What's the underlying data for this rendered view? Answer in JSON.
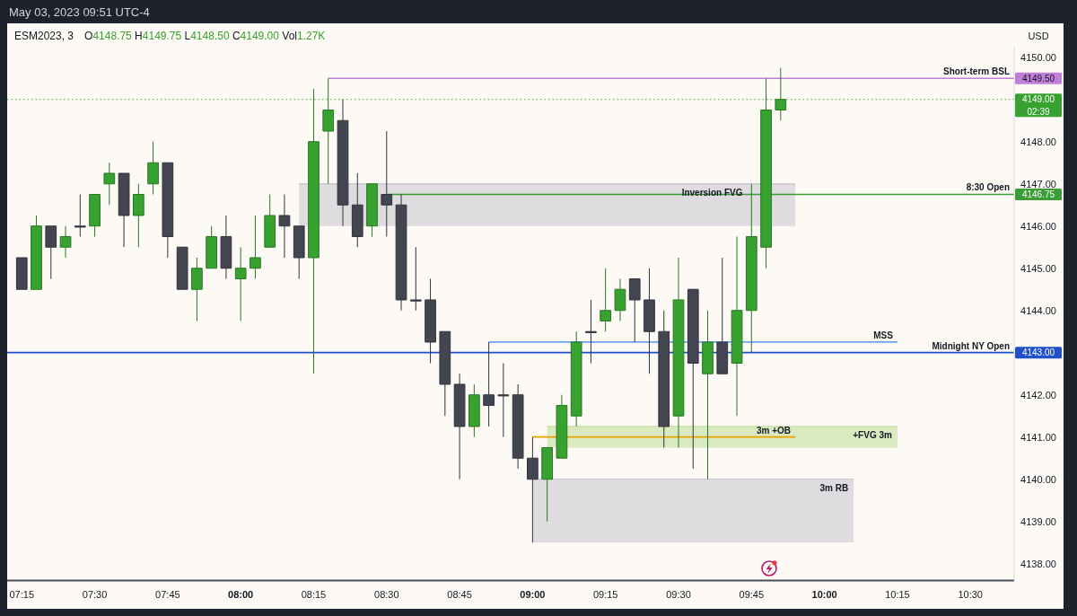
{
  "chart_data": {
    "type": "candlestick",
    "title": "ESM2023, 3",
    "subtitle": "O4148.75 H4149.75 L4148.50 C4149.00 Vol1.27K",
    "ylabel": "USD",
    "annotations": [
      "May 03, 2023 09:51 UTC-4",
      "02:39"
    ],
    "x": [
      7.25,
      7.3,
      7.35,
      7.4,
      7.45,
      7.5,
      7.55,
      7.6,
      7.65,
      7.7,
      7.75,
      7.8,
      7.85,
      7.9,
      7.95,
      8,
      8.05,
      8.1,
      8.15,
      8.2,
      8.25,
      8.3,
      8.35,
      8.4,
      8.45,
      8.5,
      8.55,
      8.6,
      8.65,
      8.7,
      8.75,
      8.8,
      8.85,
      8.9,
      8.95,
      9,
      9.05,
      9.1,
      9.15,
      9.2,
      9.25,
      9.3,
      9.35,
      9.4,
      9.45,
      9.5,
      9.55,
      9.6,
      9.65,
      9.7,
      9.75,
      9.8,
      9.85
    ],
    "ohlc": [
      [
        4145.25,
        4145.25,
        4144.5,
        4144.5
      ],
      [
        4144.5,
        4146.25,
        4144.5,
        4146
      ],
      [
        4146,
        4146,
        4144.75,
        4145.5
      ],
      [
        4145.5,
        4146,
        4145.25,
        4145.75
      ],
      [
        4146,
        4146.75,
        4145.75,
        4146
      ],
      [
        4146,
        4146.75,
        4145.75,
        4146.75
      ],
      [
        4147,
        4147.5,
        4146.5,
        4147.25
      ],
      [
        4147.25,
        4147.25,
        4145.5,
        4146.25
      ],
      [
        4146.25,
        4147,
        4145.5,
        4146.75
      ],
      [
        4147,
        4148,
        4146.75,
        4147.5
      ],
      [
        4147.5,
        4147.5,
        4145.25,
        4145.75
      ],
      [
        4145.5,
        4145.5,
        4144.5,
        4144.5
      ],
      [
        4144.5,
        4145.25,
        4143.75,
        4145
      ],
      [
        4145,
        4146,
        4145,
        4145.75
      ],
      [
        4145.75,
        4146.25,
        4144.75,
        4145
      ],
      [
        4144.75,
        4145.5,
        4143.75,
        4145
      ],
      [
        4145,
        4146.25,
        4144.75,
        4145.25
      ],
      [
        4145.5,
        4146.75,
        4145.5,
        4146.25
      ],
      [
        4146.25,
        4146.75,
        4145.25,
        4146
      ],
      [
        4146,
        4146,
        4144.75,
        4145.25
      ],
      [
        4145.25,
        4149.25,
        4142.5,
        4148
      ],
      [
        4148.25,
        4149.5,
        4147,
        4148.75
      ],
      [
        4148.5,
        4149,
        4146,
        4146.5
      ],
      [
        4146.5,
        4147.25,
        4145.5,
        4145.75
      ],
      [
        4146,
        4147,
        4145.75,
        4147
      ],
      [
        4146.75,
        4148.25,
        4145.75,
        4146.5
      ],
      [
        4146.5,
        4146.75,
        4144,
        4144.25
      ],
      [
        4144.25,
        4145.5,
        4144,
        4144.25
      ],
      [
        4144.25,
        4144.75,
        4142.75,
        4143.25
      ],
      [
        4143.5,
        4143.5,
        4141.5,
        4142.25
      ],
      [
        4142.25,
        4142.5,
        4140,
        4141.25
      ],
      [
        4141.25,
        4142.25,
        4141,
        4142
      ],
      [
        4142,
        4143.25,
        4141.25,
        4141.75
      ],
      [
        4142,
        4142.75,
        4141,
        4142
      ],
      [
        4142,
        4142.25,
        4140.25,
        4140.5
      ],
      [
        4140.5,
        4141,
        4138.5,
        4140
      ],
      [
        4140,
        4140.75,
        4139,
        4140.75
      ],
      [
        4140.5,
        4142,
        4140.5,
        4141.75
      ],
      [
        4141.5,
        4143.5,
        4141.25,
        4143.25
      ],
      [
        4143.5,
        4144.25,
        4142.75,
        4143.5
      ],
      [
        4143.75,
        4145,
        4143.5,
        4144
      ],
      [
        4144,
        4144.75,
        4143.75,
        4144.5
      ],
      [
        4144.75,
        4144.75,
        4143.25,
        4144.25
      ],
      [
        4144.25,
        4145,
        4142.5,
        4143.5
      ],
      [
        4143.5,
        4144,
        4140.75,
        4141.25
      ],
      [
        4141.5,
        4145.25,
        4140.75,
        4144.25
      ],
      [
        4144.5,
        4144.5,
        4140.25,
        4142.75
      ],
      [
        4142.5,
        4144,
        4140,
        4143.25
      ],
      [
        4143.25,
        4145.25,
        4142.5,
        4142.5
      ],
      [
        4142.75,
        4145.75,
        4141.5,
        4144
      ],
      [
        4144,
        4147,
        4143,
        4145.75
      ],
      [
        4145.5,
        4149.5,
        4145,
        4148.75
      ],
      [
        4148.75,
        4149.75,
        4148.5,
        4149
      ]
    ],
    "colors": [
      "#434651",
      "#37a22f",
      "#434651",
      "#37a22f",
      "#434651",
      "#37a22f",
      "#37a22f",
      "#434651",
      "#37a22f",
      "#37a22f",
      "#434651",
      "#434651",
      "#37a22f",
      "#37a22f",
      "#434651",
      "#37a22f",
      "#37a22f",
      "#37a22f",
      "#434651",
      "#434651",
      "#37a22f",
      "#37a22f",
      "#434651",
      "#434651",
      "#37a22f",
      "#434651",
      "#434651",
      "#434651",
      "#434651",
      "#434651",
      "#434651",
      "#37a22f",
      "#434651",
      "#434651",
      "#434651",
      "#434651",
      "#37a22f",
      "#37a22f",
      "#37a22f",
      "#434651",
      "#37a22f",
      "#37a22f",
      "#434651",
      "#434651",
      "#434651",
      "#37a22f",
      "#434651",
      "#37a22f",
      "#434651",
      "#37a22f",
      "#37a22f",
      "#37a22f",
      "#37a22f"
    ],
    "series": [
      {
        "type": "line",
        "name": "Inversion FVG",
        "x": [
          8.2,
          9.9
        ],
        "values": [
          4147,
          4147
        ],
        "lower": [
          4146,
          4146
        ],
        "upper": [
          4147,
          4147
        ],
        "color": "#c9c8cf"
      },
      {
        "type": "line",
        "name": "+FVG 3m",
        "x": [
          9.05,
          10.25
        ],
        "values": [
          4141.25,
          4141.25
        ],
        "lower": [
          4140.75,
          4140.75
        ],
        "upper": [
          4141.25,
          4141.25
        ],
        "color": "#c3df9c"
      },
      {
        "type": "line",
        "name": "3m RB",
        "x": [
          9,
          10.1
        ],
        "values": [
          4140,
          4140
        ],
        "lower": [
          4138.5,
          4138.5
        ],
        "upper": [
          4140,
          4140
        ],
        "color": "#c9c8cf"
      },
      {
        "type": "line",
        "name": "Short-term BSL",
        "x": [
          8.3,
          10.65
        ],
        "values": [
          4149.5,
          4149.5
        ],
        "color": "#c27fd9"
      },
      {
        "type": "line",
        "name": "8:30 Open",
        "x": [
          8.5,
          10.65
        ],
        "values": [
          4146.75,
          4146.75
        ],
        "color": "#3a9d35"
      },
      {
        "type": "line",
        "name": "MSS",
        "x": [
          8.85,
          10.25
        ],
        "values": [
          4143.25,
          4143.25
        ],
        "color": "#6aa5f2"
      },
      {
        "type": "line",
        "name": "Midnight NY Open",
        "x": [
          7.2,
          10.65
        ],
        "values": [
          4143,
          4143
        ],
        "color": "#1f4fcc"
      },
      {
        "type": "line",
        "name": "3m +OB",
        "x": [
          9,
          9.9
        ],
        "values": [
          4141,
          4141
        ],
        "color": "#e9a100"
      }
    ],
    "ref_lines": [
      {
        "axis": "y",
        "value": 4149,
        "color": "#37a22f",
        "line_style": "dotted"
      }
    ],
    "xlim": [
      7.2,
      10.65
    ],
    "ylim": [
      4137.6,
      4150.25
    ],
    "xticks": [
      {
        "value": 7.25,
        "label": "07:15"
      },
      {
        "value": 7.5,
        "label": "07:30"
      },
      {
        "value": 7.75,
        "label": "07:45"
      },
      {
        "value": 8,
        "label": "08:00"
      },
      {
        "value": 8.25,
        "label": "08:15"
      },
      {
        "value": 8.5,
        "label": "08:30"
      },
      {
        "value": 8.75,
        "label": "08:45"
      },
      {
        "value": 9,
        "label": "09:00"
      },
      {
        "value": 9.25,
        "label": "09:15"
      },
      {
        "value": 9.5,
        "label": "09:30"
      },
      {
        "value": 9.75,
        "label": "09:45"
      },
      {
        "value": 10,
        "label": "10:00"
      },
      {
        "value": 10.25,
        "label": "10:15"
      },
      {
        "value": 10.5,
        "label": "10:30"
      }
    ],
    "yticks": [
      {
        "value": 4138,
        "label": "4138.00"
      },
      {
        "value": 4139,
        "label": "4139.00"
      },
      {
        "value": 4140,
        "label": "4140.00"
      },
      {
        "value": 4141,
        "label": "4141.00"
      },
      {
        "value": 4142,
        "label": "4142.00"
      },
      {
        "value": 4143,
        "label": "4143.00"
      },
      {
        "value": 4144,
        "label": "4144.00"
      },
      {
        "value": 4145,
        "label": "4145.00"
      },
      {
        "value": 4146,
        "label": "4146.00"
      },
      {
        "value": 4146.75,
        "label": "4146.75"
      },
      {
        "value": 4147,
        "label": "4147.00"
      },
      {
        "value": 4148,
        "label": "4148.00"
      },
      {
        "value": 4149,
        "label": "4149.00"
      },
      {
        "value": 4149.5,
        "label": "4149.50"
      },
      {
        "value": 4150,
        "label": "4150.00"
      }
    ]
  }
}
